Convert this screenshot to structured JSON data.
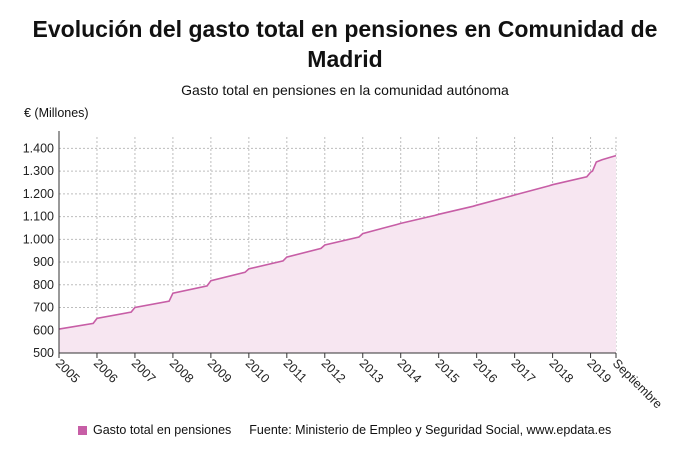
{
  "title": "Evolución del gasto total en pensiones en Comunidad de Madrid",
  "subtitle": "Gasto total en pensiones en la comunidad autónoma",
  "y_unit": "€ (Millones)",
  "legend_label": "Gasto total en pensiones",
  "source": "Fuente: Ministerio de Empleo y Seguridad Social, www.epdata.es",
  "colors": {
    "line": "#c75ea6",
    "area": "#f7e6f1",
    "grid": "#bdbdbd"
  },
  "chart_data": {
    "type": "area",
    "ylim": [
      500,
      1450
    ],
    "yticks": [
      500,
      600,
      700,
      800,
      900,
      1000,
      1100,
      1200,
      1300,
      1400
    ],
    "ytick_labels": [
      "500",
      "600",
      "700",
      "800",
      "900",
      "1.000",
      "1.100",
      "1.200",
      "1.300",
      "1.400"
    ],
    "xticks": [
      "2005",
      "2006",
      "2007",
      "2008",
      "2009",
      "2010",
      "2011",
      "2012",
      "2013",
      "2014",
      "2015",
      "2016",
      "2017",
      "2018",
      "2019",
      "Septiembre"
    ],
    "grid": true,
    "series": [
      {
        "name": "Gasto total en pensiones",
        "x": [
          2005.0,
          2005.9,
          2006.0,
          2006.9,
          2007.0,
          2007.9,
          2008.0,
          2008.9,
          2009.0,
          2009.9,
          2010.0,
          2010.9,
          2011.0,
          2011.9,
          2012.0,
          2012.9,
          2013.0,
          2013.9,
          2014.0,
          2014.9,
          2015.0,
          2015.9,
          2016.0,
          2016.9,
          2017.0,
          2017.9,
          2018.0,
          2018.9,
          2019.0,
          2019.67
        ],
        "values": [
          605,
          630,
          652,
          680,
          700,
          728,
          763,
          795,
          818,
          855,
          870,
          905,
          922,
          960,
          975,
          1010,
          1025,
          1065,
          1070,
          1105,
          1110,
          1145,
          1150,
          1190,
          1195,
          1235,
          1240,
          1275,
          1295,
          1312
        ]
      }
    ],
    "extra_points": {
      "x": [
        2019.05,
        2019.15,
        2019.3,
        2019.5,
        2019.67
      ],
      "values": [
        1300,
        1340,
        1350,
        1360,
        1368
      ]
    }
  }
}
